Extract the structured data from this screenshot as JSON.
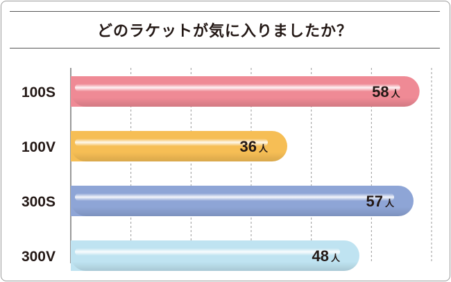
{
  "title": "どのラケットが気に入りましたか？",
  "chart_data": {
    "type": "bar",
    "orientation": "horizontal",
    "categories": [
      "100S",
      "100V",
      "300S",
      "300V"
    ],
    "values": [
      58,
      36,
      57,
      48
    ],
    "unit": "人",
    "xlim": [
      0,
      60
    ],
    "gridlines": [
      10,
      20,
      30,
      40,
      50,
      60
    ],
    "grid": true,
    "colors": [
      "#ef8a95",
      "#f6be55",
      "#8ea5d6",
      "#bfe3f1"
    ]
  }
}
